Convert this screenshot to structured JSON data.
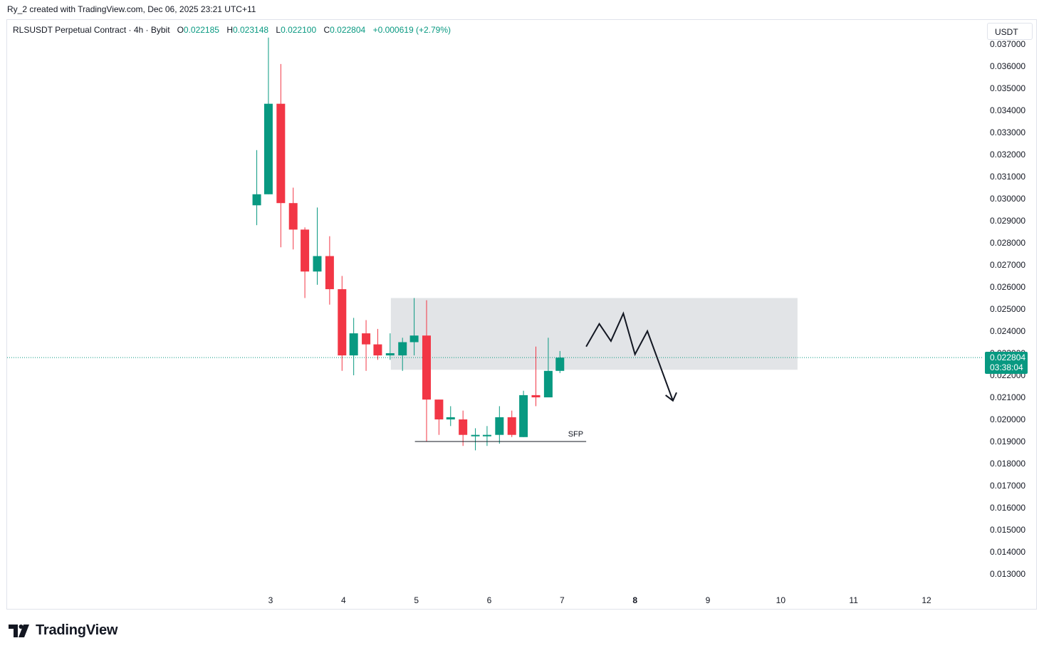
{
  "header": {
    "attribution": "Ry_2 created with TradingView.com, Dec 06, 2025 23:21 UTC+11"
  },
  "legend": {
    "symbol": "RLSUSDT Perpetual Contract · 4h · Bybit",
    "o_label": "O",
    "o_value": "0.022185",
    "h_label": "H",
    "h_value": "0.023148",
    "l_label": "L",
    "l_value": "0.022100",
    "c_label": "C",
    "c_value": "0.022804",
    "change": "+0.000619 (+2.79%)"
  },
  "currency_button": "USDT",
  "price_tag": {
    "price": "0.022804",
    "countdown": "03:38:04"
  },
  "brand": {
    "name": "TradingView"
  },
  "colors": {
    "up": "#089981",
    "down": "#f23645",
    "zone": "#e0e3e6",
    "tag": "#089981"
  },
  "chart_data": {
    "type": "candlestick",
    "y_axis": {
      "min": 0.013,
      "max": 0.037,
      "ticks": [
        "0.037000",
        "0.036000",
        "0.035000",
        "0.034000",
        "0.033000",
        "0.032000",
        "0.031000",
        "0.030000",
        "0.029000",
        "0.028000",
        "0.027000",
        "0.026000",
        "0.025000",
        "0.024000",
        "0.023000",
        "0.022000",
        "0.021000",
        "0.020000",
        "0.019000",
        "0.018000",
        "0.017000",
        "0.016000",
        "0.015000",
        "0.014000",
        "0.013000"
      ],
      "position": "right"
    },
    "x_axis": {
      "ticks": [
        {
          "label": "3",
          "day": 3
        },
        {
          "label": "4",
          "day": 4
        },
        {
          "label": "5",
          "day": 5
        },
        {
          "label": "6",
          "day": 6
        },
        {
          "label": "7",
          "day": 7
        },
        {
          "label": "8",
          "day": 8,
          "bold": true
        },
        {
          "label": "9",
          "day": 9
        },
        {
          "label": "10",
          "day": 10
        },
        {
          "label": "11",
          "day": 11
        },
        {
          "label": "12",
          "day": 12
        }
      ]
    },
    "candles": [
      {
        "t": 2.81,
        "o": 0.0297,
        "h": 0.0322,
        "l": 0.0288,
        "c": 0.0302
      },
      {
        "t": 2.97,
        "o": 0.0302,
        "h": 0.0373,
        "l": 0.0302,
        "c": 0.0343
      },
      {
        "t": 3.14,
        "o": 0.0343,
        "h": 0.0361,
        "l": 0.0278,
        "c": 0.0298
      },
      {
        "t": 3.31,
        "o": 0.0298,
        "h": 0.0305,
        "l": 0.0277,
        "c": 0.0286
      },
      {
        "t": 3.47,
        "o": 0.0286,
        "h": 0.0287,
        "l": 0.0255,
        "c": 0.0267
      },
      {
        "t": 3.64,
        "o": 0.0267,
        "h": 0.0296,
        "l": 0.0261,
        "c": 0.0274
      },
      {
        "t": 3.81,
        "o": 0.0274,
        "h": 0.0283,
        "l": 0.0252,
        "c": 0.0259
      },
      {
        "t": 3.98,
        "o": 0.0259,
        "h": 0.0265,
        "l": 0.0222,
        "c": 0.0229
      },
      {
        "t": 4.14,
        "o": 0.0229,
        "h": 0.0246,
        "l": 0.022,
        "c": 0.0239
      },
      {
        "t": 4.31,
        "o": 0.0239,
        "h": 0.0245,
        "l": 0.0222,
        "c": 0.0234
      },
      {
        "t": 4.47,
        "o": 0.0234,
        "h": 0.0241,
        "l": 0.0227,
        "c": 0.0229
      },
      {
        "t": 4.64,
        "o": 0.0229,
        "h": 0.0239,
        "l": 0.0227,
        "c": 0.023
      },
      {
        "t": 4.81,
        "o": 0.0229,
        "h": 0.0237,
        "l": 0.0222,
        "c": 0.0235
      },
      {
        "t": 4.97,
        "o": 0.0235,
        "h": 0.0255,
        "l": 0.0229,
        "c": 0.0238
      },
      {
        "t": 5.14,
        "o": 0.0238,
        "h": 0.0254,
        "l": 0.019,
        "c": 0.0209
      },
      {
        "t": 5.31,
        "o": 0.0209,
        "h": 0.0209,
        "l": 0.0193,
        "c": 0.02
      },
      {
        "t": 5.47,
        "o": 0.02,
        "h": 0.0206,
        "l": 0.0197,
        "c": 0.0201
      },
      {
        "t": 5.64,
        "o": 0.02,
        "h": 0.0204,
        "l": 0.0188,
        "c": 0.0193
      },
      {
        "t": 5.81,
        "o": 0.0193,
        "h": 0.0196,
        "l": 0.0186,
        "c": 0.0193
      },
      {
        "t": 5.97,
        "o": 0.0193,
        "h": 0.0197,
        "l": 0.0188,
        "c": 0.0193
      },
      {
        "t": 6.14,
        "o": 0.0193,
        "h": 0.0206,
        "l": 0.0189,
        "c": 0.0201
      },
      {
        "t": 6.31,
        "o": 0.0201,
        "h": 0.0204,
        "l": 0.0192,
        "c": 0.0193
      },
      {
        "t": 6.47,
        "o": 0.0192,
        "h": 0.0213,
        "l": 0.0192,
        "c": 0.0211
      },
      {
        "t": 6.64,
        "o": 0.0211,
        "h": 0.0233,
        "l": 0.0206,
        "c": 0.021
      },
      {
        "t": 6.81,
        "o": 0.021,
        "h": 0.0237,
        "l": 0.021,
        "c": 0.0222
      },
      {
        "t": 6.97,
        "o": 0.0222,
        "h": 0.0231,
        "l": 0.0221,
        "c": 0.0228
      }
    ],
    "last_price": 0.022804,
    "annotations": {
      "zone": {
        "t_start": 4.65,
        "t_end": 10.23,
        "p_top": 0.0255,
        "p_bottom": 0.02225
      },
      "sfp": {
        "label": "SFP",
        "t_start": 4.98,
        "t_end": 7.33,
        "price": 0.019
      },
      "projection": [
        {
          "t": 7.33,
          "p": 0.0233
        },
        {
          "t": 7.51,
          "p": 0.02433
        },
        {
          "t": 7.67,
          "p": 0.02355
        },
        {
          "t": 7.84,
          "p": 0.0248
        },
        {
          "t": 8.0,
          "p": 0.02295
        },
        {
          "t": 8.17,
          "p": 0.024
        },
        {
          "t": 8.52,
          "p": 0.02085
        }
      ],
      "arrowhead": [
        {
          "t": 8.42,
          "p": 0.0211
        },
        {
          "t": 8.52,
          "p": 0.02085
        },
        {
          "t": 8.57,
          "p": 0.02122
        }
      ]
    }
  }
}
